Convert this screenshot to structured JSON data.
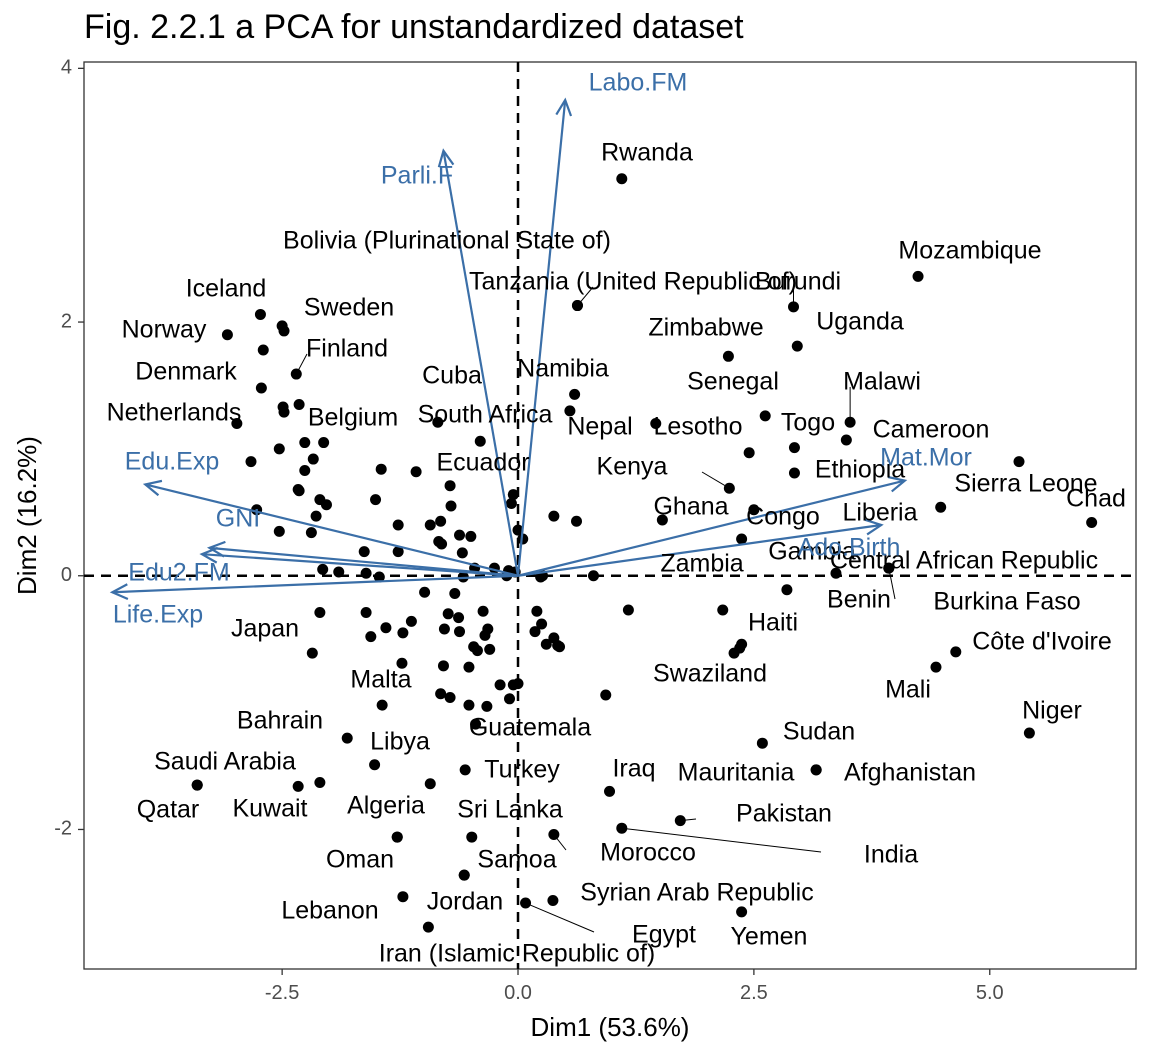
{
  "chart_data": {
    "type": "scatter",
    "title": "Fig. 2.2.1 a PCA for unstandardized dataset",
    "xlabel": "Dim1 (53.6%)",
    "ylabel": "Dim2 (16.2%)",
    "xlim": [
      -4.6,
      6.55
    ],
    "ylim": [
      -3.1,
      4.05
    ],
    "x_ticks": [
      -2.5,
      0.0,
      2.5,
      5.0
    ],
    "x_tick_labels": [
      "-2.5",
      "0.0",
      "2.5",
      "5.0"
    ],
    "y_ticks": [
      -2,
      0,
      2,
      4
    ],
    "y_tick_labels": [
      "-2",
      "0",
      "2",
      "4"
    ],
    "grid": false,
    "reference_lines": {
      "x": 0,
      "y": 0,
      "style": "dashed"
    },
    "arrow_color": "#3b6fa8",
    "point_color": "#000000",
    "variables": [
      {
        "name": "Labo.FM",
        "x": 0.5,
        "y": 3.75
      },
      {
        "name": "Parli.F",
        "x": -0.79,
        "y": 3.35
      },
      {
        "name": "Edu.Exp",
        "x": -3.95,
        "y": 0.72
      },
      {
        "name": "GNI",
        "x": -3.27,
        "y": 0.22
      },
      {
        "name": "Edu2.FM",
        "x": -3.35,
        "y": 0.17
      },
      {
        "name": "Life.Exp",
        "x": -4.3,
        "y": -0.13
      },
      {
        "name": "Mat.Mor",
        "x": 4.1,
        "y": 0.75
      },
      {
        "name": "Ado.Birth",
        "x": 3.85,
        "y": 0.4
      }
    ],
    "labeled_points": [
      {
        "label": "Rwanda",
        "x": 1.1,
        "y": 3.13
      },
      {
        "label": "Mozambique",
        "x": 4.24,
        "y": 2.36
      },
      {
        "label": "Bolivia (Plurinational State of)",
        "x": 0.63,
        "y": 2.13
      },
      {
        "label": "Tanzania (United Republic of)",
        "x": 0.63,
        "y": 2.13
      },
      {
        "label": "Burundi",
        "x": 2.92,
        "y": 2.12
      },
      {
        "label": "Uganda",
        "x": 2.96,
        "y": 1.81
      },
      {
        "label": "Zimbabwe",
        "x": 2.23,
        "y": 1.73
      },
      {
        "label": "Iceland",
        "x": -2.73,
        "y": 2.06
      },
      {
        "label": "Sweden",
        "x": -2.5,
        "y": 1.97
      },
      {
        "label": "Norway",
        "x": -3.08,
        "y": 1.9
      },
      {
        "label": "Finland",
        "x": -2.35,
        "y": 1.59
      },
      {
        "label": "Denmark",
        "x": -2.72,
        "y": 1.48
      },
      {
        "label": "Netherlands",
        "x": -2.98,
        "y": 1.2
      },
      {
        "label": "Belgium",
        "x": -2.26,
        "y": 1.05
      },
      {
        "label": "Cuba",
        "x": -0.85,
        "y": 1.21
      },
      {
        "label": "South Africa",
        "x": 0.55,
        "y": 1.3
      },
      {
        "label": "Namibia",
        "x": 0.6,
        "y": 1.43
      },
      {
        "label": "Nepal",
        "x": 1.46,
        "y": 1.2
      },
      {
        "label": "Lesotho",
        "x": 2.45,
        "y": 0.97
      },
      {
        "label": "Senegal",
        "x": 2.62,
        "y": 1.26
      },
      {
        "label": "Malawi",
        "x": 3.52,
        "y": 1.21
      },
      {
        "label": "Togo",
        "x": 2.93,
        "y": 1.01
      },
      {
        "label": "Cameroon",
        "x": 3.48,
        "y": 1.07
      },
      {
        "label": "Ethiopia",
        "x": 2.93,
        "y": 0.81
      },
      {
        "label": "Ecuador",
        "x": -0.72,
        "y": 0.71
      },
      {
        "label": "Kenya",
        "x": 2.24,
        "y": 0.69
      },
      {
        "label": "Sierra Leone",
        "x": 5.31,
        "y": 0.9
      },
      {
        "label": "Chad",
        "x": 6.08,
        "y": 0.42
      },
      {
        "label": "Ghana",
        "x": 1.53,
        "y": 0.44
      },
      {
        "label": "Congo",
        "x": 2.5,
        "y": 0.52
      },
      {
        "label": "Liberia",
        "x": 4.48,
        "y": 0.54
      },
      {
        "label": "Gambia",
        "x": 3.37,
        "y": 0.02
      },
      {
        "label": "Central African Republic",
        "x": 3.93,
        "y": 0.06
      },
      {
        "label": "Zambia",
        "x": 2.37,
        "y": 0.29
      },
      {
        "label": "Benin",
        "x": 2.85,
        "y": -0.11
      },
      {
        "label": "Burkina Faso",
        "x": 3.93,
        "y": 0.06
      },
      {
        "label": "Haiti",
        "x": 2.35,
        "y": -0.57
      },
      {
        "label": "Côte d'Ivoire",
        "x": 4.64,
        "y": -0.6
      },
      {
        "label": "Japan",
        "x": -2.18,
        "y": -0.61
      },
      {
        "label": "Swaziland",
        "x": 2.37,
        "y": -0.54
      },
      {
        "label": "Mali",
        "x": 4.43,
        "y": -0.72
      },
      {
        "label": "Malta",
        "x": -1.44,
        "y": -1.02
      },
      {
        "label": "Niger",
        "x": 5.42,
        "y": -1.24
      },
      {
        "label": "Bahrain",
        "x": -1.81,
        "y": -1.28
      },
      {
        "label": "Guatemala",
        "x": -0.45,
        "y": -1.17
      },
      {
        "label": "Sudan",
        "x": 2.59,
        "y": -1.32
      },
      {
        "label": "Libya",
        "x": -1.52,
        "y": -1.49
      },
      {
        "label": "Saudi Arabia",
        "x": -3.4,
        "y": -1.65
      },
      {
        "label": "Turkey",
        "x": -0.56,
        "y": -1.53
      },
      {
        "label": "Iraq",
        "x": 0.97,
        "y": -1.7
      },
      {
        "label": "Mauritania",
        "x": 3.16,
        "y": -1.53
      },
      {
        "label": "Afghanistan",
        "x": 3.16,
        "y": -1.53
      },
      {
        "label": "Qatar",
        "x": -3.4,
        "y": -1.65
      },
      {
        "label": "Kuwait",
        "x": -2.33,
        "y": -1.66
      },
      {
        "label": "Algeria",
        "x": -1.28,
        "y": -2.06
      },
      {
        "label": "Sri Lanka",
        "x": -0.49,
        "y": -2.06
      },
      {
        "label": "Pakistan",
        "x": 1.72,
        "y": -1.93
      },
      {
        "label": "India",
        "x": 1.1,
        "y": -1.99
      },
      {
        "label": "Morocco",
        "x": 0.38,
        "y": -2.04
      },
      {
        "label": "Oman",
        "x": -1.28,
        "y": -2.06
      },
      {
        "label": "Samoa",
        "x": -0.57,
        "y": -2.36
      },
      {
        "label": "Syrian Arab Republic",
        "x": 0.37,
        "y": -2.56
      },
      {
        "label": "Lebanon",
        "x": -1.22,
        "y": -2.53
      },
      {
        "label": "Jordan",
        "x": -0.57,
        "y": -2.36
      },
      {
        "label": "Egypt",
        "x": 0.08,
        "y": -2.58
      },
      {
        "label": "Yemen",
        "x": 2.37,
        "y": -2.65
      },
      {
        "label": "Iran (Islamic Republic of)",
        "x": -0.95,
        "y": -2.77
      }
    ],
    "unlabeled_points": [
      [
        -2.7,
        1.78
      ],
      [
        -2.48,
        1.93
      ],
      [
        -2.49,
        1.33
      ],
      [
        -2.48,
        1.29
      ],
      [
        -2.32,
        1.35
      ],
      [
        -2.83,
        0.9
      ],
      [
        -2.53,
        1.0
      ],
      [
        -2.06,
        1.05
      ],
      [
        -1.45,
        0.84
      ],
      [
        -1.08,
        0.82
      ],
      [
        -0.93,
        0.4
      ],
      [
        -0.4,
        1.06
      ],
      [
        -0.05,
        0.64
      ],
      [
        -2.26,
        0.83
      ],
      [
        -2.17,
        0.92
      ],
      [
        -2.32,
        0.67
      ],
      [
        -2.1,
        0.6
      ],
      [
        -2.14,
        0.47
      ],
      [
        -2.03,
        0.56
      ],
      [
        -2.19,
        0.34
      ],
      [
        -2.77,
        0.52
      ],
      [
        -2.53,
        0.35
      ],
      [
        -2.33,
        0.68
      ],
      [
        -1.51,
        0.6
      ],
      [
        -1.27,
        0.4
      ],
      [
        -1.63,
        0.19
      ],
      [
        -1.27,
        0.19
      ],
      [
        -0.82,
        0.43
      ],
      [
        -0.71,
        0.55
      ],
      [
        -0.5,
        0.31
      ],
      [
        -0.81,
        0.25
      ],
      [
        -0.62,
        0.32
      ],
      [
        -0.84,
        0.27
      ],
      [
        -0.59,
        0.18
      ],
      [
        -0.46,
        0.06
      ],
      [
        -0.25,
        0.06
      ],
      [
        -0.1,
        0.04
      ],
      [
        0.0,
        0.36
      ],
      [
        0.05,
        0.29
      ],
      [
        -1.61,
        0.02
      ],
      [
        -1.9,
        0.03
      ],
      [
        -2.07,
        0.05
      ],
      [
        -1.47,
        -0.01
      ],
      [
        -0.99,
        -0.13
      ],
      [
        -0.67,
        -0.14
      ],
      [
        -0.58,
        -0.01
      ],
      [
        -0.12,
        0.0
      ],
      [
        0.24,
        -0.01
      ],
      [
        -0.63,
        -0.33
      ],
      [
        -0.37,
        -0.28
      ],
      [
        -0.32,
        -0.42
      ],
      [
        -0.78,
        -0.42
      ],
      [
        -0.62,
        -0.44
      ],
      [
        -0.74,
        -0.3
      ],
      [
        -0.3,
        -0.58
      ],
      [
        -0.43,
        -0.59
      ],
      [
        -0.35,
        -0.47
      ],
      [
        -0.47,
        -0.56
      ],
      [
        0.42,
        -0.55
      ],
      [
        0.3,
        -0.54
      ],
      [
        0.44,
        -0.56
      ],
      [
        0.2,
        -0.28
      ],
      [
        0.18,
        -0.44
      ],
      [
        0.25,
        -0.38
      ],
      [
        0.38,
        -0.49
      ],
      [
        -1.61,
        -0.29
      ],
      [
        -1.4,
        -0.41
      ],
      [
        -1.56,
        -0.48
      ],
      [
        -1.22,
        -0.45
      ],
      [
        -1.13,
        -0.36
      ],
      [
        -0.52,
        -0.72
      ],
      [
        -0.82,
        -0.93
      ],
      [
        -0.72,
        -0.96
      ],
      [
        -0.52,
        -1.02
      ],
      [
        -0.79,
        -0.71
      ],
      [
        -0.33,
        -1.03
      ],
      [
        -0.09,
        -0.97
      ],
      [
        -0.05,
        -0.86
      ],
      [
        0.0,
        -0.85
      ],
      [
        0.93,
        -0.94
      ],
      [
        1.17,
        -0.27
      ],
      [
        0.26,
        0.0
      ],
      [
        0.8,
        0.0
      ],
      [
        -0.03,
        0.03
      ],
      [
        -2.1,
        -0.29
      ],
      [
        -1.23,
        -0.69
      ],
      [
        -2.1,
        -1.63
      ],
      [
        -0.93,
        -1.64
      ],
      [
        -0.19,
        -0.86
      ],
      [
        2.17,
        -0.27
      ],
      [
        2.29,
        -0.61
      ],
      [
        -0.07,
        0.57
      ],
      [
        0.38,
        0.47
      ],
      [
        0.62,
        0.43
      ]
    ]
  }
}
